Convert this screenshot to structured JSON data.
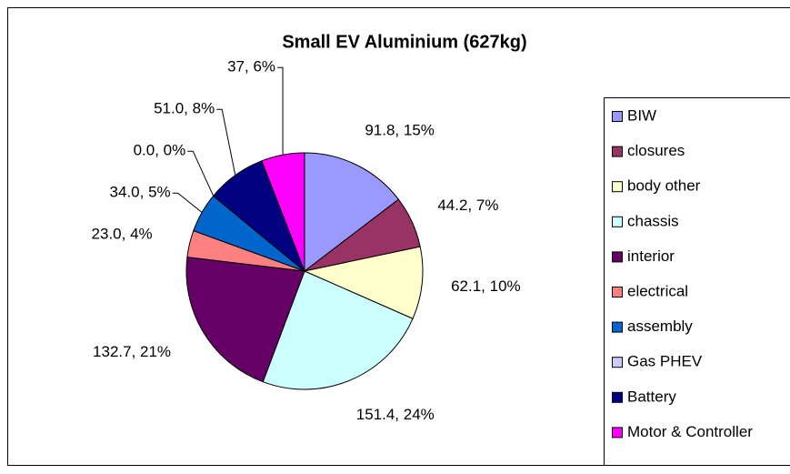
{
  "chart_data": {
    "type": "pie",
    "title": "Small  EV Aluminium (627kg)",
    "categories": [
      "BIW",
      "closures",
      "body other",
      "chassis",
      "interior",
      "electrical",
      "assembly",
      "Gas PHEV",
      "Battery",
      "Motor & Controller"
    ],
    "values": [
      91.8,
      44.2,
      62.1,
      151.4,
      132.7,
      23.0,
      34.0,
      0.0,
      51.0,
      37
    ],
    "value_labels": [
      "91.8, 15%",
      "44.2, 7%",
      "62.1, 10%",
      "151.4, 24%",
      "132.7, 21%",
      "23.0, 4%",
      "34.0, 5%",
      "0.0, 0%",
      "51.0, 8%",
      "37, 6%"
    ],
    "colors": [
      "#9999ff",
      "#993366",
      "#ffffcc",
      "#ccffff",
      "#660066",
      "#ff8080",
      "#0066cc",
      "#ccccff",
      "#000080",
      "#ff00ff"
    ],
    "legend": "right"
  }
}
